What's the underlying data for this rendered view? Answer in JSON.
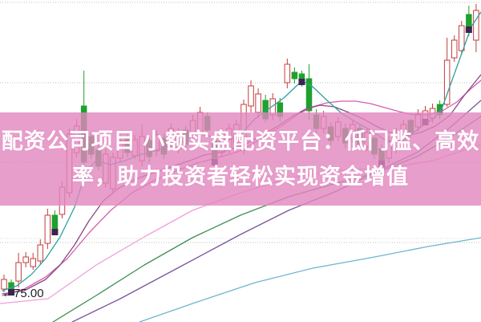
{
  "banner": {
    "line1": "配资公司项目 小额实盘配资平台：低门槛、高效",
    "line2": "率，助力投资者轻松实现资金增值",
    "text_color": "#ffffff",
    "band_color": "rgba(225,134,190,0.8)"
  },
  "annotation": {
    "label": "←75.00",
    "price": 75.0,
    "color": "#222222"
  },
  "chart_data": {
    "type": "candlestick",
    "title": "",
    "xlabel": "",
    "ylabel": "",
    "ylim": [
      71.6,
      111.7
    ],
    "x0": 5,
    "x_step": 9.06,
    "candle_width": 6.5,
    "grid": {
      "style": "dotted",
      "color": "#bcbcbc",
      "minor_color": "#d9d9d9",
      "major_prices": [
        111.4,
        101.4,
        91.5,
        81.5
      ],
      "minor_prices": [
        82.0
      ]
    },
    "colors": {
      "up": "#c43c3c",
      "up_fill": "#ffffff",
      "down": "#1fa12e",
      "marker": "#3c2450"
    },
    "candles": [
      [
        75.7,
        77.5,
        75.3,
        76.9
      ],
      [
        76.5,
        76.9,
        75.2,
        75.5
      ],
      [
        76.7,
        80.2,
        75.9,
        79.0
      ],
      [
        79.0,
        80.3,
        78.4,
        79.7
      ],
      [
        78.5,
        80.2,
        78.1,
        79.5
      ],
      [
        79.2,
        81.9,
        78.7,
        81.2
      ],
      [
        81.4,
        85.7,
        80.7,
        84.9
      ],
      [
        84.9,
        85.5,
        82.5,
        83.0
      ],
      [
        85.0,
        89.1,
        84.5,
        88.4
      ],
      [
        87.7,
        95.7,
        87.1,
        95.0
      ],
      [
        92.7,
        96.9,
        92.1,
        96.0
      ],
      [
        98.5,
        102.9,
        91.1,
        91.5
      ],
      [
        94.7,
        95.2,
        91.9,
        92.5
      ],
      [
        93.0,
        93.7,
        90.5,
        91.0
      ],
      [
        88.9,
        93.2,
        88.3,
        92.5
      ],
      [
        88.2,
        92.7,
        87.7,
        92.1
      ],
      [
        92.0,
        94.9,
        91.5,
        94.2
      ],
      [
        94.5,
        95.0,
        92.1,
        92.7
      ],
      [
        92.3,
        94.9,
        91.9,
        94.3
      ],
      [
        91.7,
        96.2,
        91.0,
        94.7
      ],
      [
        94.2,
        94.7,
        91.4,
        92.2
      ],
      [
        92.9,
        95.5,
        92.2,
        94.9
      ],
      [
        94.5,
        95.0,
        91.9,
        92.5
      ],
      [
        93.7,
        96.3,
        93.1,
        95.7
      ],
      [
        93.2,
        95.8,
        92.6,
        95.2
      ],
      [
        95.5,
        96.0,
        93.1,
        93.7
      ],
      [
        94.9,
        97.4,
        94.3,
        96.7
      ],
      [
        95.0,
        98.4,
        94.5,
        97.7
      ],
      [
        97.2,
        97.7,
        95.0,
        95.5
      ],
      [
        94.2,
        94.7,
        91.0,
        91.7
      ],
      [
        92.7,
        95.7,
        92.1,
        95.1
      ],
      [
        93.2,
        96.3,
        92.6,
        95.7
      ],
      [
        93.9,
        96.8,
        93.3,
        96.2
      ],
      [
        93.0,
        99.3,
        92.5,
        98.7
      ],
      [
        98.5,
        101.7,
        97.7,
        101.0
      ],
      [
        97.7,
        100.7,
        97.0,
        100.0
      ],
      [
        99.2,
        99.9,
        96.5,
        96.9
      ],
      [
        97.4,
        100.1,
        96.7,
        99.4
      ],
      [
        98.9,
        99.5,
        96.6,
        97.2
      ],
      [
        101.4,
        104.4,
        100.7,
        103.7
      ],
      [
        102.7,
        103.3,
        101.3,
        101.9
      ],
      [
        102.5,
        102.9,
        100.9,
        101.7
      ],
      [
        101.9,
        103.7,
        96.7,
        97.9
      ],
      [
        97.4,
        98.1,
        95.1,
        95.7
      ],
      [
        95.7,
        97.9,
        95.1,
        97.2
      ],
      [
        95.9,
        96.5,
        93.6,
        94.2
      ],
      [
        94.7,
        97.1,
        94.1,
        96.5
      ],
      [
        95.7,
        96.3,
        93.3,
        93.9
      ],
      [
        94.5,
        96.8,
        93.9,
        96.2
      ],
      [
        95.7,
        96.2,
        93.1,
        93.7
      ],
      [
        93.5,
        95.8,
        92.9,
        95.2
      ],
      [
        94.5,
        95.1,
        91.9,
        92.5
      ],
      [
        93.2,
        93.7,
        90.9,
        91.5
      ],
      [
        92.0,
        94.7,
        91.4,
        94.0
      ],
      [
        93.2,
        95.8,
        92.6,
        95.2
      ],
      [
        94.5,
        96.8,
        93.9,
        96.2
      ],
      [
        96.7,
        96.9,
        94.6,
        95.2
      ],
      [
        95.9,
        98.1,
        95.3,
        97.5
      ],
      [
        96.7,
        98.5,
        96.1,
        97.9
      ],
      [
        97.0,
        98.8,
        96.4,
        98.2
      ],
      [
        98.7,
        99.2,
        96.9,
        97.4
      ],
      [
        98.7,
        107.0,
        98.4,
        104.2
      ],
      [
        104.5,
        107.3,
        104.0,
        106.7
      ],
      [
        105.4,
        109.1,
        104.9,
        108.5
      ],
      [
        109.9,
        111.0,
        107.2,
        108.2
      ],
      [
        106.7,
        111.2,
        105.2,
        110.4
      ]
    ],
    "markers": [
      1,
      7,
      29,
      41,
      52,
      58,
      64
    ],
    "legend": [],
    "ma_series": [
      {
        "name": "ma-light-pink",
        "color": "#efa0d8",
        "points": [
          [
            0,
            73.9
          ],
          [
            60,
            74.5
          ],
          [
            120,
            78.7
          ],
          [
            180,
            82.2
          ],
          [
            240,
            85.5
          ],
          [
            300,
            87.7
          ],
          [
            360,
            89.5
          ],
          [
            420,
            90.5
          ],
          [
            480,
            90.7
          ],
          [
            540,
            91.7
          ],
          [
            600,
            93.7
          ]
        ]
      },
      {
        "name": "ma-light-blue",
        "color": "#6ab6cf",
        "points": [
          [
            174,
            71.6
          ],
          [
            246,
            74.1
          ],
          [
            318,
            76.5
          ],
          [
            390,
            78.3
          ],
          [
            462,
            79.6
          ],
          [
            534,
            81.0
          ],
          [
            600,
            82.1
          ]
        ]
      },
      {
        "name": "ma-green",
        "color": "#3f8f55",
        "points": [
          [
            66,
            71.6
          ],
          [
            120,
            74.9
          ],
          [
            180,
            78.7
          ],
          [
            240,
            82.1
          ],
          [
            300,
            84.9
          ],
          [
            360,
            87.2
          ],
          [
            420,
            88.9
          ],
          [
            470,
            90.2
          ],
          [
            520,
            92.2
          ],
          [
            560,
            94.5
          ],
          [
            600,
            97.2
          ]
        ]
      },
      {
        "name": "ma-violet",
        "color": "#7a55a0",
        "points": [
          [
            90,
            71.6
          ],
          [
            150,
            74.5
          ],
          [
            210,
            77.7
          ],
          [
            270,
            80.9
          ],
          [
            300,
            82.5
          ],
          [
            360,
            85.5
          ],
          [
            420,
            87.9
          ],
          [
            467,
            90.2
          ],
          [
            520,
            92.7
          ],
          [
            560,
            95.7
          ],
          [
            600,
            99.2
          ]
        ]
      },
      {
        "name": "ma-magenta",
        "color": "#d45fb0",
        "points": [
          [
            3,
            74.9
          ],
          [
            30,
            75.7
          ],
          [
            57,
            77.2
          ],
          [
            84,
            79.5
          ],
          [
            111,
            82.7
          ],
          [
            138,
            85.5
          ],
          [
            165,
            87.7
          ],
          [
            192,
            89.2
          ],
          [
            219,
            90.4
          ],
          [
            246,
            91.4
          ],
          [
            273,
            92.1
          ],
          [
            300,
            92.9
          ],
          [
            327,
            94.5
          ],
          [
            354,
            96.2
          ],
          [
            372,
            97.5
          ],
          [
            390,
            98.4
          ],
          [
            408,
            98.9
          ],
          [
            426,
            99.1
          ],
          [
            444,
            99.1
          ],
          [
            462,
            98.8
          ],
          [
            480,
            98.3
          ],
          [
            498,
            97.8
          ],
          [
            516,
            97.4
          ],
          [
            534,
            97.4
          ],
          [
            552,
            97.9
          ],
          [
            570,
            99.0
          ],
          [
            588,
            100.7
          ],
          [
            600,
            101.7
          ]
        ]
      },
      {
        "name": "ma-mauve",
        "color": "#8a4a85",
        "points": [
          [
            3,
            75.1
          ],
          [
            30,
            75.5
          ],
          [
            57,
            76.9
          ],
          [
            75,
            78.7
          ],
          [
            93,
            81.2
          ],
          [
            111,
            84.2
          ],
          [
            129,
            86.7
          ],
          [
            147,
            88.2
          ],
          [
            165,
            89.2
          ],
          [
            183,
            89.9
          ],
          [
            201,
            90.5
          ],
          [
            219,
            91.1
          ],
          [
            237,
            91.7
          ],
          [
            255,
            92.4
          ],
          [
            273,
            92.7
          ],
          [
            291,
            93.2
          ],
          [
            309,
            93.9
          ],
          [
            327,
            94.9
          ],
          [
            345,
            95.9
          ],
          [
            363,
            97.1
          ],
          [
            381,
            98.1
          ],
          [
            399,
            98.6
          ],
          [
            417,
            98.4
          ],
          [
            435,
            97.7
          ],
          [
            453,
            96.9
          ],
          [
            471,
            95.9
          ],
          [
            489,
            95.1
          ],
          [
            507,
            94.8
          ],
          [
            525,
            95.2
          ],
          [
            543,
            96.0
          ],
          [
            561,
            97.3
          ],
          [
            579,
            99.8
          ],
          [
            600,
            102.4
          ]
        ]
      },
      {
        "name": "ma-teal",
        "color": "#2fa0a0",
        "points": [
          [
            3,
            75.5
          ],
          [
            21,
            76.1
          ],
          [
            39,
            77.5
          ],
          [
            57,
            79.5
          ],
          [
            75,
            82.2
          ],
          [
            93,
            85.9
          ],
          [
            102,
            88.7
          ],
          [
            111,
            90.7
          ],
          [
            120,
            91.7
          ],
          [
            138,
            91.2
          ],
          [
            156,
            91.7
          ],
          [
            174,
            92.4
          ],
          [
            192,
            92.9
          ],
          [
            210,
            93.5
          ],
          [
            228,
            94.1
          ],
          [
            246,
            95.1
          ],
          [
            264,
            94.7
          ],
          [
            282,
            94.1
          ],
          [
            300,
            94.9
          ],
          [
            318,
            96.9
          ],
          [
            336,
            98.2
          ],
          [
            354,
            99.5
          ],
          [
            372,
            101.2
          ],
          [
            381,
            101.4
          ],
          [
            390,
            100.9
          ],
          [
            408,
            99.2
          ],
          [
            426,
            97.6
          ],
          [
            444,
            96.5
          ],
          [
            462,
            95.5
          ],
          [
            480,
            94.3
          ],
          [
            498,
            93.9
          ],
          [
            507,
            94.5
          ],
          [
            525,
            95.9
          ],
          [
            543,
            97.1
          ],
          [
            552,
            98.4
          ],
          [
            561,
            100.9
          ],
          [
            570,
            103.4
          ],
          [
            579,
            105.9
          ],
          [
            588,
            108.4
          ],
          [
            600,
            110.2
          ]
        ]
      }
    ]
  }
}
